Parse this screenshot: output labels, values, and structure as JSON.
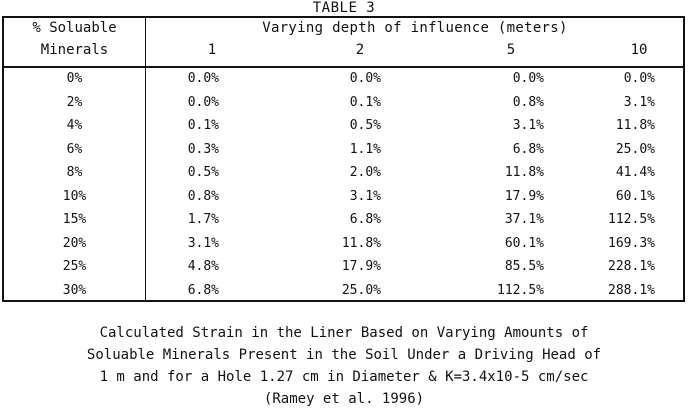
{
  "table": {
    "title": "TABLE 3",
    "col0_header_line1": "% Soluable",
    "col0_header_line2": "Minerals",
    "span_header": "Varying depth of influence (meters)",
    "depth_headers": [
      "1",
      "2",
      "5",
      "10"
    ],
    "rows": [
      {
        "mineral": "0%",
        "values": [
          "0.0%",
          "0.0%",
          "0.0%",
          "0.0%"
        ]
      },
      {
        "mineral": "2%",
        "values": [
          "0.0%",
          "0.1%",
          "0.8%",
          "3.1%"
        ]
      },
      {
        "mineral": "4%",
        "values": [
          "0.1%",
          "0.5%",
          "3.1%",
          "11.8%"
        ]
      },
      {
        "mineral": "6%",
        "values": [
          "0.3%",
          "1.1%",
          "6.8%",
          "25.0%"
        ]
      },
      {
        "mineral": "8%",
        "values": [
          "0.5%",
          "2.0%",
          "11.8%",
          "41.4%"
        ]
      },
      {
        "mineral": "10%",
        "values": [
          "0.8%",
          "3.1%",
          "17.9%",
          "60.1%"
        ]
      },
      {
        "mineral": "15%",
        "values": [
          "1.7%",
          "6.8%",
          "37.1%",
          "112.5%"
        ]
      },
      {
        "mineral": "20%",
        "values": [
          "3.1%",
          "11.8%",
          "60.1%",
          "169.3%"
        ]
      },
      {
        "mineral": "25%",
        "values": [
          "4.8%",
          "17.9%",
          "85.5%",
          "228.1%"
        ]
      },
      {
        "mineral": "30%",
        "values": [
          "6.8%",
          "25.0%",
          "112.5%",
          "288.1%"
        ]
      }
    ]
  },
  "caption": {
    "lines": [
      "Calculated Strain in the Liner Based on Varying Amounts of",
      "Soluable Minerals Present in the Soil Under a Driving Head of",
      "1 m and for a Hole 1.27 cm in Diameter & K=3.4x10-5 cm/sec",
      "(Ramey et al.  1996)"
    ]
  }
}
